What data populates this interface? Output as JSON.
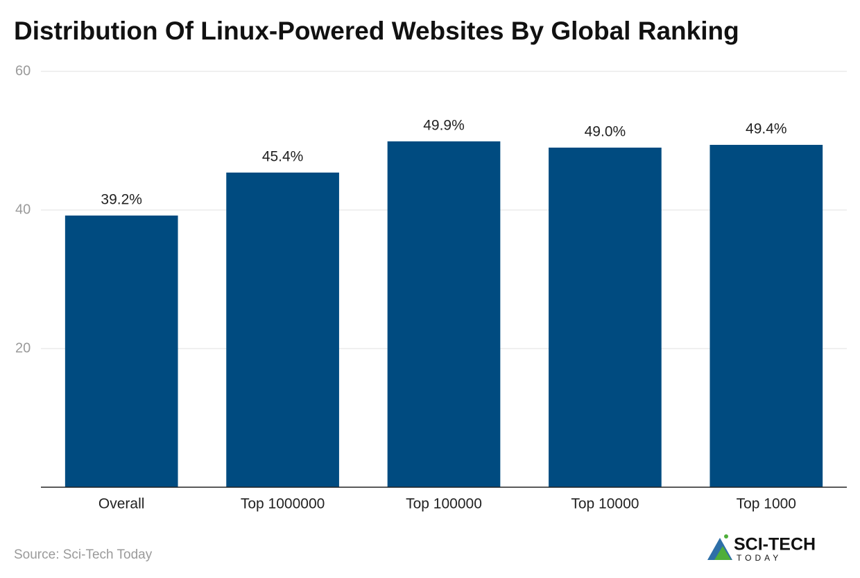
{
  "chart_data": {
    "type": "bar",
    "title": "Distribution Of Linux-Powered Websites By Global Ranking",
    "categories": [
      "Overall",
      "Top 1000000",
      "Top 100000",
      "Top 10000",
      "Top 1000"
    ],
    "values": [
      39.2,
      45.4,
      49.9,
      49.0,
      49.4
    ],
    "value_labels": [
      "39.2%",
      "45.4%",
      "49.9%",
      "49.0%",
      "49.4%"
    ],
    "color": "#004b80",
    "ylim": [
      0,
      60
    ],
    "yticks": [
      20,
      40,
      60
    ],
    "grid": true
  },
  "source": "Source: Sci-Tech Today",
  "logo": {
    "name": "SCI-TECH",
    "tagline": "TODAY"
  }
}
